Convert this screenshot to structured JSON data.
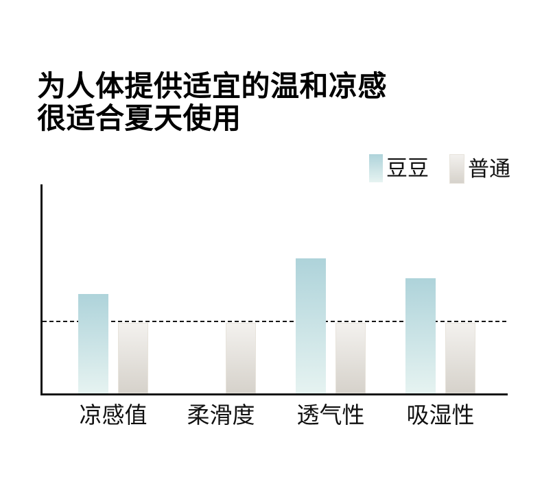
{
  "title": {
    "line1": "为人体提供适宜的温和凉感",
    "line2": "很适合夏天使用"
  },
  "chart_data": {
    "type": "bar",
    "categories": [
      "凉感值",
      "柔滑度",
      "透气性",
      "吸湿性"
    ],
    "series": [
      {
        "name": "豆豆",
        "values": [
          1.41,
          null,
          1.91,
          1.63
        ],
        "gradient_top": "#aed3da",
        "gradient_bottom": "#e6f3f1",
        "border": ""
      },
      {
        "name": "普通",
        "values": [
          1.0,
          1.0,
          1.0,
          1.0
        ],
        "gradient_top": "#f3f1ee",
        "gradient_bottom": "#d6d2cb",
        "border": "#e7e3db"
      }
    ],
    "reference_line": {
      "value": 1.0,
      "style": "dashed",
      "color": "#151515"
    },
    "ylim": [
      0,
      2.96
    ],
    "axis_color": "#111111",
    "grid": false,
    "legend_position": "top-right",
    "xlabel": "",
    "ylabel": ""
  }
}
